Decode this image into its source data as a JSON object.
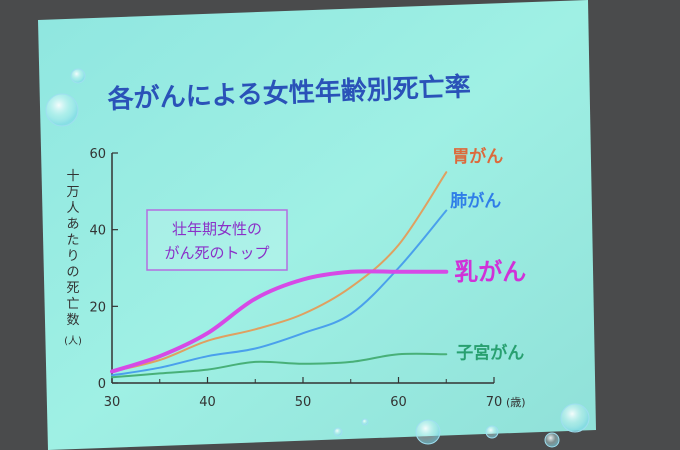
{
  "chart_data": {
    "type": "line",
    "title": "各がんによる女性年齢別死亡率",
    "ylabel_lines": [
      "十",
      "万",
      "人",
      "あ",
      "た",
      "り",
      "の",
      "死",
      "亡",
      "数"
    ],
    "ylabel_unit": "(人)",
    "xlabel_unit": "(歳)",
    "xlim": [
      30,
      70
    ],
    "ylim": [
      0,
      60
    ],
    "x_ticks": [
      30,
      40,
      50,
      60,
      70
    ],
    "y_ticks": [
      0,
      20,
      40,
      60
    ],
    "annotation": [
      "壮年期女性の",
      "がん死のトップ"
    ],
    "series": [
      {
        "name": "胃がん",
        "color": "#e0a060",
        "label_color": "#dc6a3c",
        "x": [
          30,
          35,
          40,
          45,
          50,
          55,
          60,
          65
        ],
        "y": [
          3,
          6,
          11,
          14,
          18,
          25,
          36,
          55
        ]
      },
      {
        "name": "肺がん",
        "color": "#4aa0ec",
        "label_color": "#2f7ee8",
        "x": [
          30,
          35,
          40,
          45,
          50,
          55,
          60,
          65
        ],
        "y": [
          2,
          4,
          7,
          9,
          13,
          18,
          30,
          45
        ]
      },
      {
        "name": "乳がん",
        "color": "#d64ae6",
        "label_color": "#d032d8",
        "x": [
          30,
          35,
          40,
          45,
          50,
          55,
          60,
          65
        ],
        "y": [
          3,
          7,
          13,
          22,
          27,
          29,
          29,
          29
        ]
      },
      {
        "name": "子宮がん",
        "color": "#48b078",
        "label_color": "#28a070",
        "x": [
          30,
          35,
          40,
          45,
          50,
          55,
          60,
          65
        ],
        "y": [
          1.5,
          2.5,
          3.5,
          5.5,
          5,
          5.5,
          7.5,
          7.5
        ]
      }
    ]
  }
}
